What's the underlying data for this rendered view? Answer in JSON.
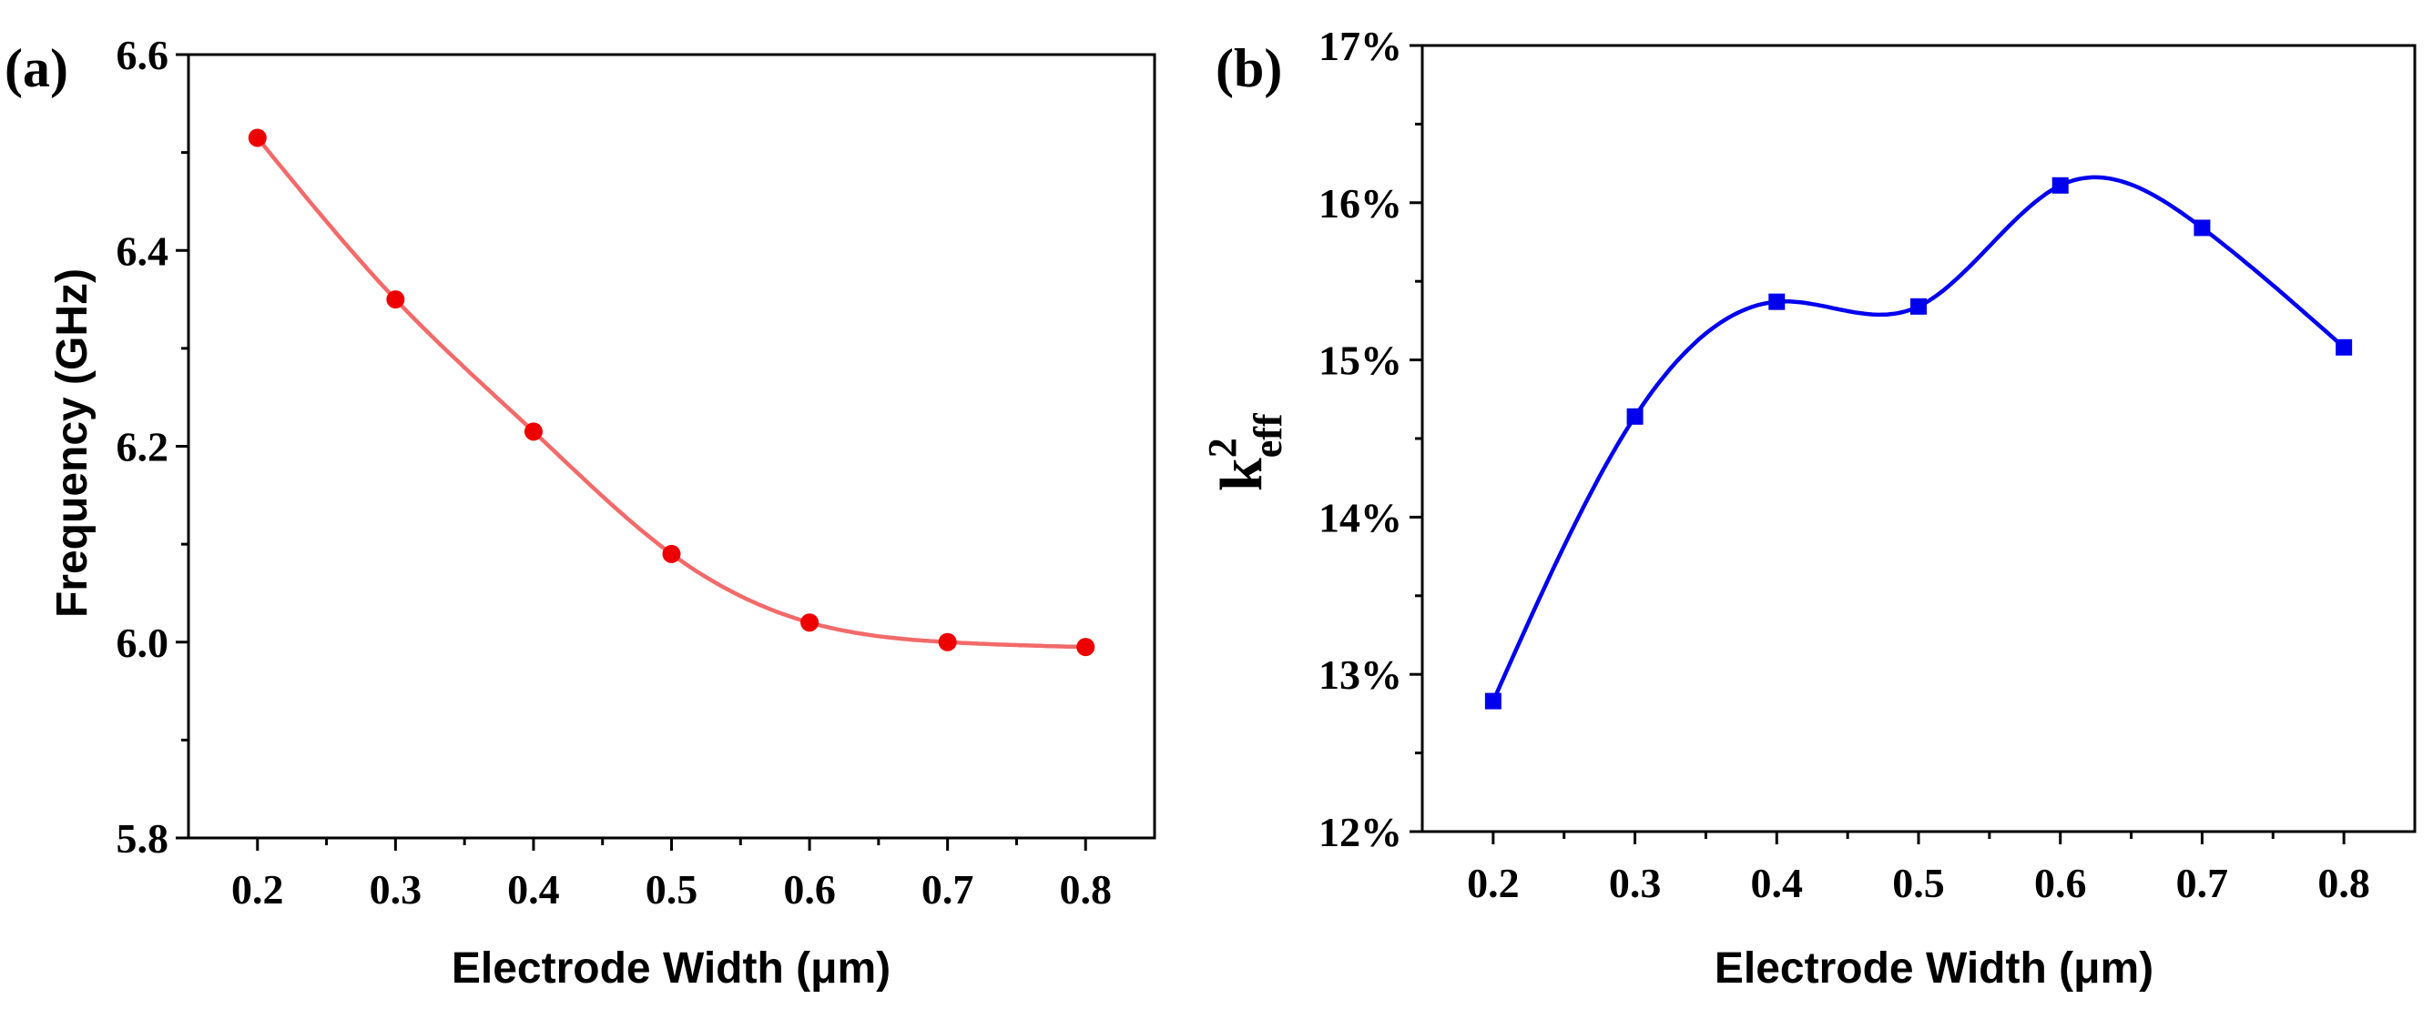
{
  "chart_data": [
    {
      "type": "line",
      "panel_label": "(a)",
      "x": [
        0.2,
        0.3,
        0.4,
        0.5,
        0.6,
        0.7,
        0.8
      ],
      "series": [
        {
          "values": [
            6.515,
            6.35,
            6.215,
            6.09,
            6.02,
            6.0,
            5.995
          ],
          "color": "#ee0000",
          "line_color": "#f26a6a",
          "marker": "circle"
        }
      ],
      "xlabel": "Electrode Width (μm)",
      "ylabel": "Frequency (GHz)",
      "xlim": [
        0.15,
        0.85
      ],
      "ylim": [
        5.8,
        6.6
      ],
      "xticks": [
        0.2,
        0.3,
        0.4,
        0.5,
        0.6,
        0.7,
        0.8
      ],
      "xtick_labels": [
        "0.2",
        "0.3",
        "0.4",
        "0.5",
        "0.6",
        "0.7",
        "0.8"
      ],
      "yticks": [
        5.8,
        6.0,
        6.2,
        6.4,
        6.6
      ],
      "ytick_labels": [
        "5.8",
        "6.0",
        "6.2",
        "6.4",
        "6.6"
      ],
      "grid": false
    },
    {
      "type": "line",
      "panel_label": "(b)",
      "x": [
        0.2,
        0.3,
        0.4,
        0.5,
        0.6,
        0.7,
        0.8
      ],
      "series": [
        {
          "values": [
            12.83,
            14.64,
            15.37,
            15.34,
            16.11,
            15.84,
            15.08
          ],
          "color": "#0000ee",
          "line_color": "#0000ee",
          "marker": "square"
        }
      ],
      "xlabel": "Electrode Width (μm)",
      "ylabel": {
        "base": "k",
        "sup": "2",
        "sub": "eff"
      },
      "xlim": [
        0.15,
        0.85
      ],
      "ylim": [
        12,
        17
      ],
      "xticks": [
        0.2,
        0.3,
        0.4,
        0.5,
        0.6,
        0.7,
        0.8
      ],
      "xtick_labels": [
        "0.2",
        "0.3",
        "0.4",
        "0.5",
        "0.6",
        "0.7",
        "0.8"
      ],
      "yticks": [
        12,
        13,
        14,
        15,
        16,
        17
      ],
      "ytick_labels": [
        "12%",
        "13%",
        "14%",
        "15%",
        "16%",
        "17%"
      ],
      "grid": false
    }
  ]
}
